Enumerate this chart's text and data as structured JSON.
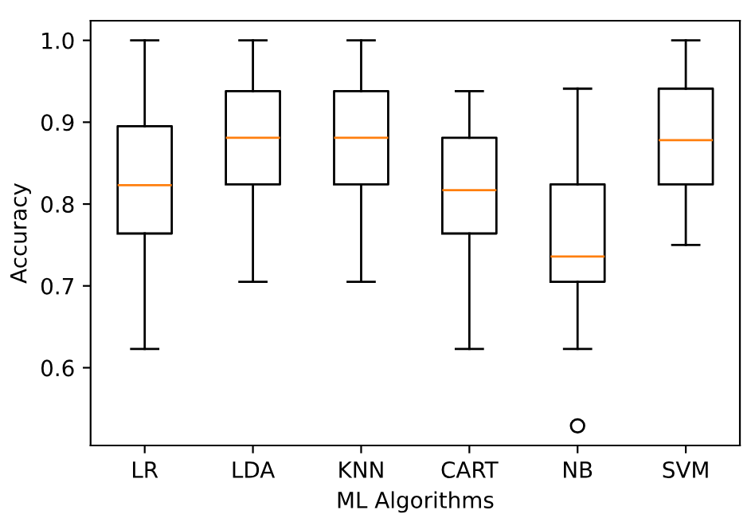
{
  "chart_data": {
    "type": "box",
    "xlabel": "ML Algorithms",
    "ylabel": "Accuracy",
    "categories": [
      "LR",
      "LDA",
      "KNN",
      "CART",
      "NB",
      "SVM"
    ],
    "boxes": [
      {
        "low": 0.623,
        "q1": 0.764,
        "median": 0.823,
        "q3": 0.895,
        "high": 1.0
      },
      {
        "low": 0.705,
        "q1": 0.824,
        "median": 0.881,
        "q3": 0.938,
        "high": 1.0
      },
      {
        "low": 0.705,
        "q1": 0.824,
        "median": 0.881,
        "q3": 0.938,
        "high": 1.0
      },
      {
        "low": 0.623,
        "q1": 0.764,
        "median": 0.817,
        "q3": 0.881,
        "high": 0.938
      },
      {
        "low": 0.623,
        "q1": 0.705,
        "median": 0.736,
        "q3": 0.824,
        "high": 0.941,
        "outliers": [
          0.529
        ]
      },
      {
        "low": 0.75,
        "q1": 0.824,
        "median": 0.878,
        "q3": 0.941,
        "high": 1.0
      }
    ],
    "color": "#000000",
    "ylim": [
      0.505,
      1.024
    ],
    "yticks": [
      0.6,
      0.7,
      0.8,
      0.9,
      {
        "value": 1.0,
        "label": "1.0"
      }
    ],
    "grid": false
  }
}
